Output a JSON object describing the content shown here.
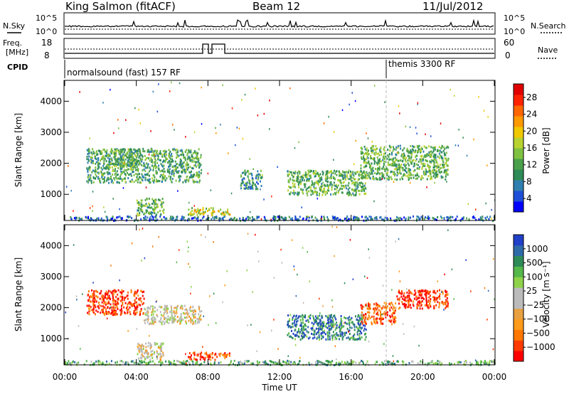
{
  "header": {
    "station": "King Salmon (fitACF)",
    "beam": "Beam 12",
    "date": "11/Jul/2012"
  },
  "top_panels": {
    "nsky_label": "N.Sky",
    "nsearch_label": "N.Search",
    "count_ticks": [
      "10^5",
      "10^0"
    ],
    "freq_label_1": "Freq.",
    "freq_label_2": "[MHz]",
    "freq_ticks": [
      "18",
      "8"
    ],
    "nave_ticks": [
      "60",
      "0"
    ],
    "nave_label": "Nave",
    "cpid_label": "CPID",
    "cpid_segments": [
      {
        "label": "normalsound (fast) 157 RF",
        "start_hour": 0.0
      },
      {
        "label": "themis 3300 RF",
        "start_hour": 18.0
      }
    ]
  },
  "chart_data": [
    {
      "type": "heatmap",
      "name": "power",
      "ylabel": "Slant Range [km]",
      "y_ticks": [
        "4000",
        "3000",
        "2000",
        "1000"
      ],
      "y_tick_values": [
        4000,
        3000,
        2000,
        1000
      ],
      "ylim": [
        180,
        4650
      ],
      "xlim": [
        0,
        24
      ],
      "colorbar_label": "Power [dB]",
      "colorbar_ticks": [
        "28",
        "24",
        "20",
        "16",
        "12",
        "8",
        "4"
      ],
      "colorbar_colors": [
        "#0000ff",
        "#1e4fd8",
        "#2f7fb0",
        "#2e8b57",
        "#4aa04a",
        "#7fc241",
        "#b8d230",
        "#f0c800",
        "#ff9900",
        "#ff6600",
        "#ff2200",
        "#e00000"
      ],
      "clusters": [
        {
          "t0": 1.2,
          "t1": 7.6,
          "r0": 1400,
          "r1": 2500,
          "level": 0.35
        },
        {
          "t0": 2.3,
          "t1": 4.2,
          "r0": 1900,
          "r1": 2500,
          "level": 0.4
        },
        {
          "t0": 4.0,
          "t1": 5.5,
          "r0": 350,
          "r1": 900,
          "level": 0.4
        },
        {
          "t0": 6.8,
          "t1": 9.2,
          "r0": 350,
          "r1": 600,
          "level": 0.55
        },
        {
          "t0": 9.8,
          "t1": 11.0,
          "r0": 1200,
          "r1": 1800,
          "level": 0.3
        },
        {
          "t0": 12.4,
          "t1": 16.8,
          "r0": 1000,
          "r1": 1800,
          "level": 0.4
        },
        {
          "t0": 16.5,
          "t1": 21.4,
          "r0": 1500,
          "r1": 2600,
          "level": 0.4
        },
        {
          "t0": 0.0,
          "t1": 24.0,
          "r0": 180,
          "r1": 320,
          "level": 0.2
        }
      ]
    },
    {
      "type": "heatmap",
      "name": "velocity",
      "xlabel": "Time UT",
      "ylabel": "Slant Range [km]",
      "y_ticks": [
        "4000",
        "3000",
        "2000",
        "1000"
      ],
      "y_tick_values": [
        4000,
        3000,
        2000,
        1000
      ],
      "ylim": [
        180,
        4650
      ],
      "xlim": [
        0,
        24
      ],
      "x_ticks": [
        "00:00",
        "04:00",
        "08:00",
        "12:00",
        "16:00",
        "20:00",
        "00:00"
      ],
      "x_tick_hours": [
        0,
        4,
        8,
        12,
        16,
        20,
        24
      ],
      "colorbar_label": "Velocity [m s⁻¹]",
      "colorbar_ticks": [
        "1000",
        "500",
        "100",
        "25",
        "−25",
        "−100",
        "−500",
        "−1000"
      ],
      "colorbar_colors": [
        "#ff0000",
        "#ff3a00",
        "#ff7700",
        "#ff9a1a",
        "#e8a040",
        "#bbbbbb",
        "#bbbbbb",
        "#8ed24a",
        "#55b84a",
        "#2e8b57",
        "#2f6aa8",
        "#2040c8"
      ],
      "clusters": [
        {
          "t0": 1.2,
          "t1": 4.4,
          "r0": 1800,
          "r1": 2600,
          "level": 0.12
        },
        {
          "t0": 4.4,
          "t1": 7.6,
          "r0": 1500,
          "r1": 2100,
          "level": 0.48
        },
        {
          "t0": 4.0,
          "t1": 5.5,
          "r0": 350,
          "r1": 900,
          "level": 0.48
        },
        {
          "t0": 6.8,
          "t1": 9.2,
          "r0": 350,
          "r1": 600,
          "level": 0.15
        },
        {
          "t0": 12.4,
          "t1": 16.8,
          "r0": 1000,
          "r1": 1800,
          "level": 0.82
        },
        {
          "t0": 16.5,
          "t1": 18.5,
          "r0": 1500,
          "r1": 2200,
          "level": 0.2
        },
        {
          "t0": 18.5,
          "t1": 21.4,
          "r0": 2000,
          "r1": 2600,
          "level": 0.1
        },
        {
          "t0": 0.0,
          "t1": 24.0,
          "r0": 180,
          "r1": 320,
          "level": 0.7
        }
      ]
    }
  ]
}
